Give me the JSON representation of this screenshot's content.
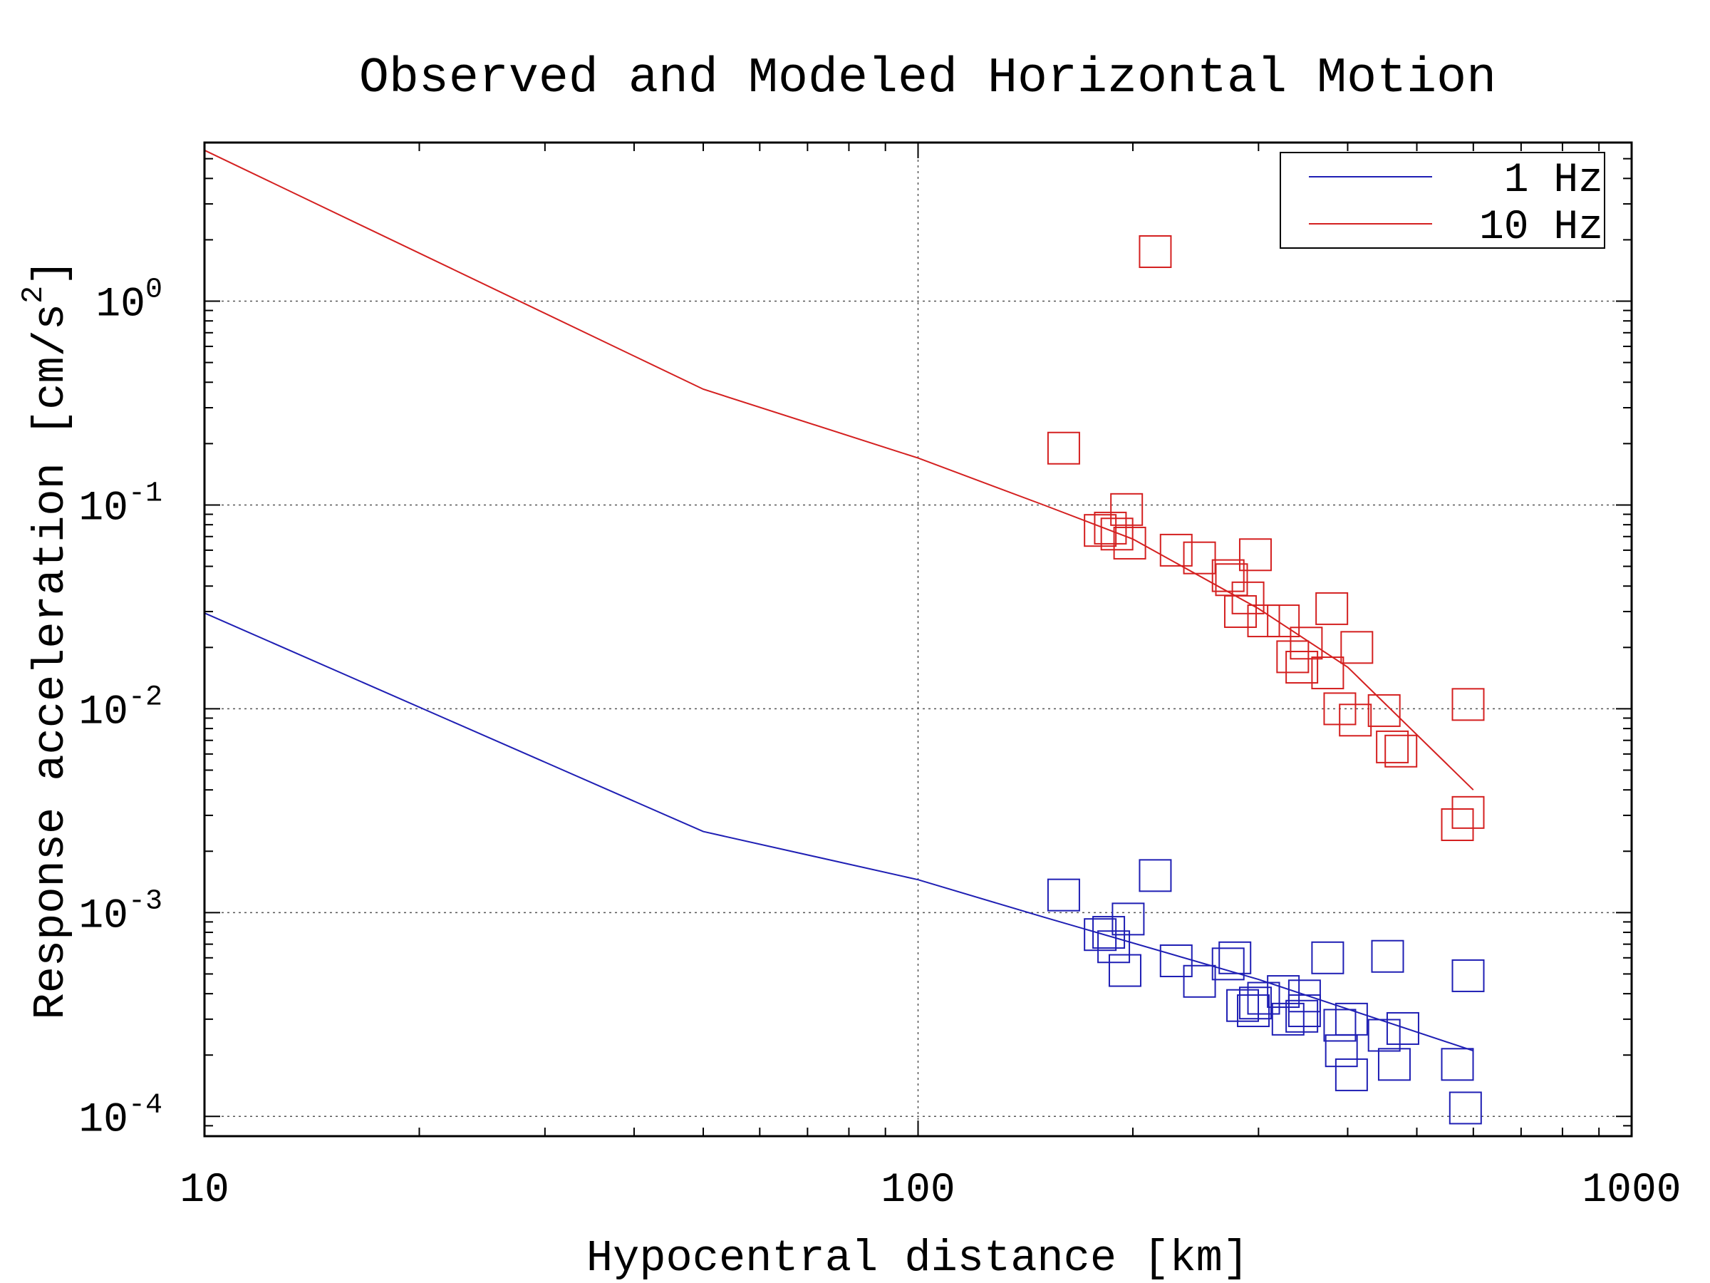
{
  "chart_data": {
    "type": "scatter",
    "title": "Observed and Modeled Horizontal Motion",
    "xlabel": "Hypocentral distance [km]",
    "ylabel": {
      "base": "Response acceleration [cm/s",
      "sup": "2",
      "end": "]"
    },
    "x_scale": "log",
    "y_scale": "log",
    "xlim": [
      10,
      1000
    ],
    "ylim": [
      8e-05,
      6
    ],
    "x_ticks": [
      {
        "value": 10,
        "label": "10"
      },
      {
        "value": 100,
        "label": "100"
      },
      {
        "value": 1000,
        "label": "1000"
      }
    ],
    "y_ticks": [
      {
        "value": 1,
        "base": "10",
        "exp": "0"
      },
      {
        "value": 0.1,
        "base": "10",
        "exp": "-1"
      },
      {
        "value": 0.01,
        "base": "10",
        "exp": "-2"
      },
      {
        "value": 0.001,
        "base": "10",
        "exp": "-3"
      },
      {
        "value": 0.0001,
        "base": "10",
        "exp": "-4"
      }
    ],
    "grid": true,
    "legend_position": "top-right",
    "series": [
      {
        "name": "1 Hz",
        "color": "#1f1fb4",
        "model": [
          [
            10,
            0.0295
          ],
          [
            50,
            0.0025
          ],
          [
            100,
            0.00145
          ],
          [
            150,
            0.00095
          ],
          [
            300,
            0.00047
          ],
          [
            600,
            0.00021
          ]
        ],
        "observed": [
          [
            160,
            0.00122
          ],
          [
            180,
            0.00078
          ],
          [
            185,
            0.0008
          ],
          [
            188,
            0.00068
          ],
          [
            195,
            0.00052
          ],
          [
            197,
            0.00093
          ],
          [
            230,
            0.00058
          ],
          [
            248,
            0.00046
          ],
          [
            272,
            0.00056
          ],
          [
            278,
            0.0006
          ],
          [
            285,
            0.00035
          ],
          [
            295,
            0.00033
          ],
          [
            297,
            0.00036
          ],
          [
            305,
            0.00038
          ],
          [
            325,
            0.00041
          ],
          [
            330,
            0.0003
          ],
          [
            345,
            0.00031
          ],
          [
            348,
            0.00039
          ],
          [
            348,
            0.00033
          ],
          [
            375,
            0.0006
          ],
          [
            390,
            0.00028
          ],
          [
            392,
            0.00021
          ],
          [
            405,
            0.0003
          ],
          [
            405,
            0.00016
          ],
          [
            450,
            0.00025
          ],
          [
            455,
            0.00061
          ],
          [
            465,
            0.00018
          ],
          [
            478,
            0.00027
          ],
          [
            570,
            0.00018
          ],
          [
            585,
            0.00011
          ],
          [
            590,
            0.00049
          ],
          [
            215,
            0.00152
          ]
        ]
      },
      {
        "name": "10 Hz",
        "color": "#d42020",
        "model": [
          [
            10,
            5.5
          ],
          [
            50,
            0.37
          ],
          [
            100,
            0.17
          ],
          [
            150,
            0.1
          ],
          [
            200,
            0.068
          ],
          [
            300,
            0.031
          ],
          [
            400,
            0.016
          ],
          [
            600,
            0.004
          ]
        ],
        "observed": [
          [
            160,
            0.19
          ],
          [
            180,
            0.075
          ],
          [
            186,
            0.077
          ],
          [
            190,
            0.072
          ],
          [
            196,
            0.095
          ],
          [
            198,
            0.065
          ],
          [
            215,
            1.75
          ],
          [
            230,
            0.06
          ],
          [
            248,
            0.055
          ],
          [
            272,
            0.045
          ],
          [
            275,
            0.043
          ],
          [
            283,
            0.03
          ],
          [
            290,
            0.035
          ],
          [
            297,
            0.057
          ],
          [
            305,
            0.027
          ],
          [
            325,
            0.027
          ],
          [
            335,
            0.018
          ],
          [
            345,
            0.016
          ],
          [
            350,
            0.021
          ],
          [
            375,
            0.015
          ],
          [
            380,
            0.031
          ],
          [
            390,
            0.01
          ],
          [
            410,
            0.0088
          ],
          [
            412,
            0.02
          ],
          [
            450,
            0.0098
          ],
          [
            462,
            0.0065
          ],
          [
            475,
            0.0062
          ],
          [
            570,
            0.0027
          ],
          [
            590,
            0.0031
          ],
          [
            590,
            0.0105
          ]
        ]
      }
    ]
  }
}
